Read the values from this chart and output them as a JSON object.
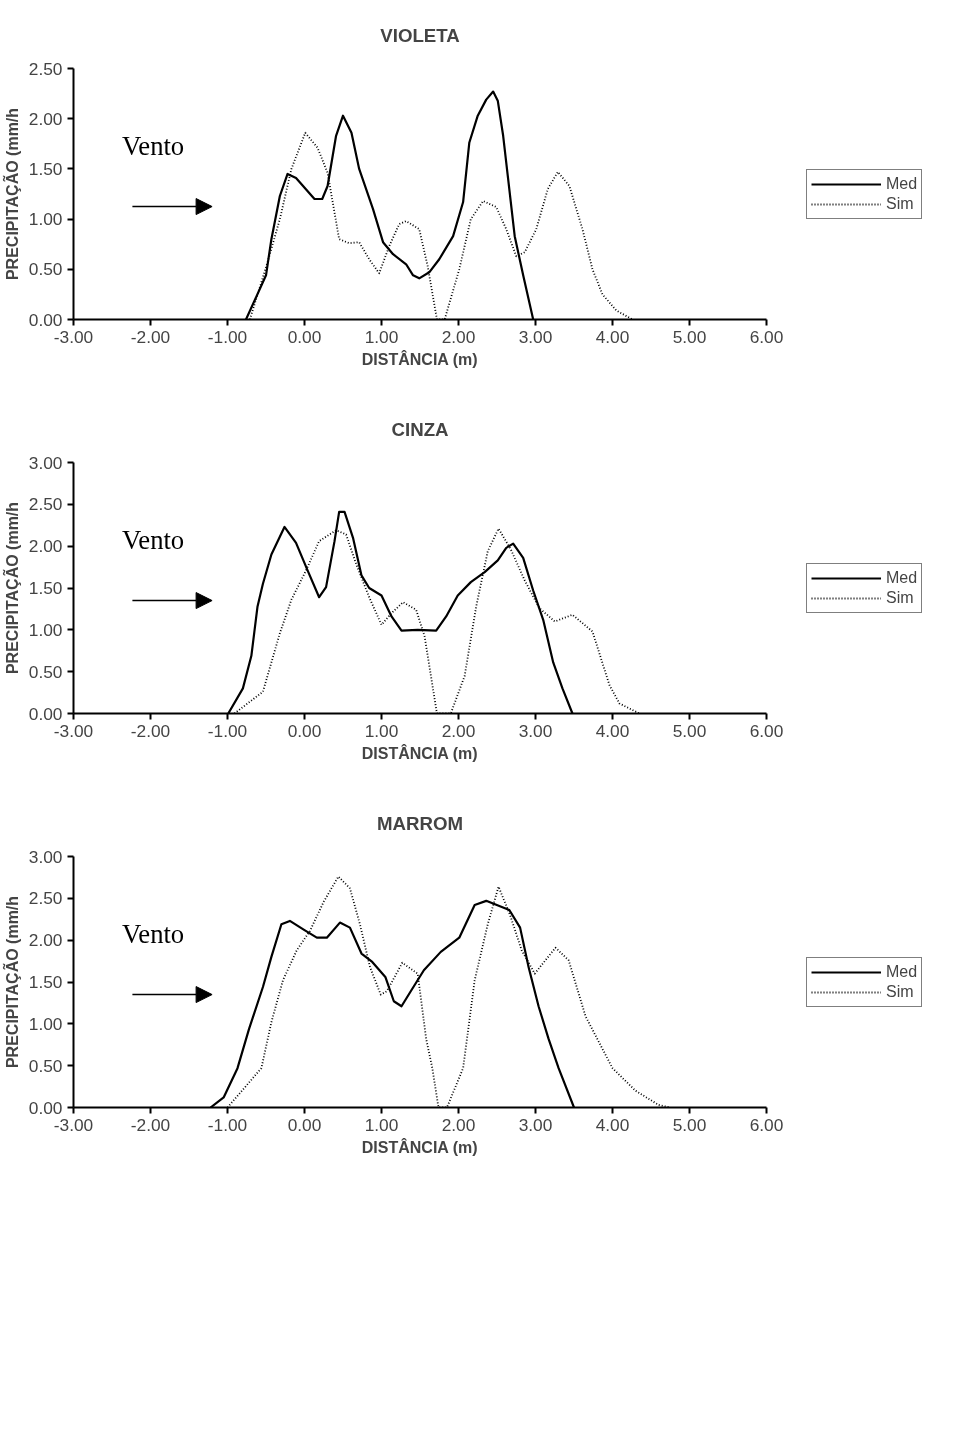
{
  "chart_data": [
    {
      "type": "line",
      "title": "VIOLETA",
      "xlabel": "DISTÂNCIA (m)",
      "ylabel": "PRECIPITAÇÃO (mm/h",
      "annotations": [
        "Vento"
      ],
      "legend": "right",
      "grid": false,
      "xlim": [
        -3,
        6
      ],
      "xticks": [
        {
          "value": -3,
          "label": "-3.00"
        },
        {
          "value": -2,
          "label": "-2.00"
        },
        {
          "value": -1,
          "label": "-1.00"
        },
        {
          "value": 0,
          "label": "0.00"
        },
        {
          "value": 1,
          "label": "1.00"
        },
        {
          "value": 2,
          "label": "2.00"
        },
        {
          "value": 3,
          "label": "3.00"
        },
        {
          "value": 4,
          "label": "4.00"
        },
        {
          "value": 5,
          "label": "5.00"
        },
        {
          "value": 6,
          "label": "6.00"
        }
      ],
      "ylim": [
        0,
        2.5
      ],
      "yticks": [
        {
          "value": 0,
          "label": "0.00"
        },
        {
          "value": 0.5,
          "label": "0.50"
        },
        {
          "value": 1,
          "label": "1.00"
        },
        {
          "value": 1.5,
          "label": "1.50"
        },
        {
          "value": 2,
          "label": "2.00"
        },
        {
          "value": 2.5,
          "label": "2.50"
        }
      ],
      "series": [
        {
          "name": "Med",
          "color": "#000000",
          "line_style": "solid",
          "x": [
            -0.76,
            -0.5,
            -0.43,
            -0.32,
            -0.22,
            -0.11,
            0.13,
            0.23,
            0.3,
            0.41,
            0.5,
            0.61,
            0.71,
            0.89,
            1.02,
            1.15,
            1.32,
            1.41,
            1.49,
            1.62,
            1.75,
            1.93,
            2.06,
            2.14,
            2.25,
            2.36,
            2.45,
            2.51,
            2.58,
            2.64,
            2.73,
            2.84,
            2.97
          ],
          "values": [
            0,
            0.44,
            0.8,
            1.23,
            1.45,
            1.41,
            1.2,
            1.2,
            1.33,
            1.83,
            2.03,
            1.86,
            1.5,
            1.1,
            0.77,
            0.65,
            0.55,
            0.44,
            0.41,
            0.47,
            0.6,
            0.83,
            1.17,
            1.76,
            2.03,
            2.19,
            2.27,
            2.18,
            1.83,
            1.43,
            0.83,
            0.44,
            0
          ]
        },
        {
          "name": "Sim",
          "color": "#000000",
          "line_style": "dotted",
          "x": [
            -0.71,
            -0.48,
            -0.32,
            -0.17,
            0.01,
            0.17,
            0.3,
            0.45,
            0.58,
            0.71,
            0.84,
            0.97,
            1.1,
            1.23,
            1.32,
            1.49,
            1.6,
            1.72,
            1.82,
            2.01,
            2.16,
            2.32,
            2.49,
            2.62,
            2.75,
            2.86,
            3.01,
            3.16,
            3.29,
            3.44,
            3.61,
            3.74,
            3.87,
            4.05,
            4.26
          ],
          "values": [
            0,
            0.57,
            1.0,
            1.5,
            1.86,
            1.71,
            1.46,
            0.8,
            0.76,
            0.77,
            0.6,
            0.46,
            0.73,
            0.95,
            0.98,
            0.9,
            0.53,
            0,
            0,
            0.5,
            1.0,
            1.18,
            1.12,
            0.9,
            0.63,
            0.67,
            0.9,
            1.3,
            1.47,
            1.33,
            0.9,
            0.5,
            0.25,
            0.09,
            0
          ]
        }
      ]
    },
    {
      "type": "line",
      "title": "CINZA",
      "xlabel": "DISTÂNCIA (m)",
      "ylabel": "PRECIPITAÇÃO (mm/h",
      "annotations": [
        "Vento"
      ],
      "legend": "right",
      "grid": false,
      "xlim": [
        -3,
        6
      ],
      "xticks": [
        {
          "value": -3,
          "label": "-3.00"
        },
        {
          "value": -2,
          "label": "-2.00"
        },
        {
          "value": -1,
          "label": "-1.00"
        },
        {
          "value": 0,
          "label": "0.00"
        },
        {
          "value": 1,
          "label": "1.00"
        },
        {
          "value": 2,
          "label": "2.00"
        },
        {
          "value": 3,
          "label": "3.00"
        },
        {
          "value": 4,
          "label": "4.00"
        },
        {
          "value": 5,
          "label": "5.00"
        },
        {
          "value": 6,
          "label": "6.00"
        }
      ],
      "ylim": [
        0,
        3
      ],
      "yticks": [
        {
          "value": 0,
          "label": "0.00"
        },
        {
          "value": 0.5,
          "label": "0.50"
        },
        {
          "value": 1,
          "label": "1.00"
        },
        {
          "value": 1.5,
          "label": "1.50"
        },
        {
          "value": 2,
          "label": "2.00"
        },
        {
          "value": 2.5,
          "label": "2.50"
        },
        {
          "value": 3,
          "label": "3.00"
        }
      ],
      "series": [
        {
          "name": "Med",
          "color": "#000000",
          "line_style": "solid",
          "x": [
            -0.99,
            -0.8,
            -0.69,
            -0.61,
            -0.54,
            -0.43,
            -0.26,
            -0.11,
            0.04,
            0.19,
            0.28,
            0.39,
            0.45,
            0.52,
            0.63,
            0.74,
            0.84,
            1.0,
            1.13,
            1.26,
            1.47,
            1.71,
            1.84,
            1.99,
            2.16,
            2.34,
            2.51,
            2.62,
            2.71,
            2.84,
            2.97,
            3.1,
            3.23,
            3.35,
            3.48
          ],
          "values": [
            0,
            0.3,
            0.69,
            1.28,
            1.55,
            1.9,
            2.23,
            2.04,
            1.71,
            1.39,
            1.51,
            2.06,
            2.41,
            2.41,
            2.1,
            1.65,
            1.5,
            1.41,
            1.16,
            0.99,
            1.0,
            0.99,
            1.16,
            1.41,
            1.57,
            1.69,
            1.83,
            1.98,
            2.03,
            1.86,
            1.47,
            1.12,
            0.61,
            0.3,
            0
          ]
        },
        {
          "name": "Sim",
          "color": "#000000",
          "line_style": "dotted",
          "x": [
            -0.91,
            -0.54,
            -0.32,
            -0.17,
            0.02,
            0.19,
            0.41,
            0.54,
            0.67,
            0.84,
            1.0,
            1.13,
            1.28,
            1.45,
            1.56,
            1.72,
            1.9,
            2.08,
            2.23,
            2.38,
            2.52,
            2.68,
            2.86,
            3.05,
            3.25,
            3.48,
            3.74,
            3.96,
            4.09,
            4.35
          ],
          "values": [
            0,
            0.26,
            0.96,
            1.36,
            1.71,
            2.06,
            2.19,
            2.14,
            1.79,
            1.39,
            1.06,
            1.2,
            1.33,
            1.24,
            0.92,
            0,
            0,
            0.45,
            1.28,
            1.94,
            2.21,
            1.96,
            1.59,
            1.26,
            1.1,
            1.18,
            0.98,
            0.34,
            0.12,
            0
          ]
        }
      ]
    },
    {
      "type": "line",
      "title": "MARROM",
      "xlabel": "DISTÂNCIA (m)",
      "ylabel": "PRECIPITAÇÃO (mm/h",
      "annotations": [
        "Vento"
      ],
      "legend": "right",
      "grid": false,
      "xlim": [
        -3,
        6
      ],
      "xticks": [
        {
          "value": -3,
          "label": "-3.00"
        },
        {
          "value": -2,
          "label": "-2.00"
        },
        {
          "value": -1,
          "label": "-1.00"
        },
        {
          "value": 0,
          "label": "0.00"
        },
        {
          "value": 1,
          "label": "1.00"
        },
        {
          "value": 2,
          "label": "2.00"
        },
        {
          "value": 3,
          "label": "3.00"
        },
        {
          "value": 4,
          "label": "4.00"
        },
        {
          "value": 5,
          "label": "5.00"
        },
        {
          "value": 6,
          "label": "6.00"
        }
      ],
      "ylim": [
        0,
        3
      ],
      "yticks": [
        {
          "value": 0,
          "label": "0.00"
        },
        {
          "value": 0.5,
          "label": "0.50"
        },
        {
          "value": 1,
          "label": "1.00"
        },
        {
          "value": 1.5,
          "label": "1.50"
        },
        {
          "value": 2,
          "label": "2.00"
        },
        {
          "value": 2.5,
          "label": "2.50"
        },
        {
          "value": 3,
          "label": "3.00"
        }
      ],
      "series": [
        {
          "name": "Med",
          "color": "#000000",
          "line_style": "solid",
          "x": [
            -1.22,
            -1.05,
            -0.87,
            -0.72,
            -0.54,
            -0.43,
            -0.3,
            -0.19,
            0.0,
            0.16,
            0.29,
            0.46,
            0.59,
            0.74,
            0.88,
            1.05,
            1.16,
            1.26,
            1.38,
            1.55,
            1.77,
            2.01,
            2.21,
            2.36,
            2.66,
            2.8,
            2.91,
            3.04,
            3.17,
            3.3,
            3.5
          ],
          "values": [
            0,
            0.12,
            0.47,
            0.94,
            1.44,
            1.8,
            2.19,
            2.23,
            2.12,
            2.03,
            2.03,
            2.21,
            2.15,
            1.84,
            1.74,
            1.56,
            1.27,
            1.21,
            1.39,
            1.64,
            1.86,
            2.03,
            2.42,
            2.47,
            2.36,
            2.15,
            1.68,
            1.21,
            0.82,
            0.47,
            0
          ]
        },
        {
          "name": "Sim",
          "color": "#000000",
          "line_style": "dotted",
          "x": [
            -1.0,
            -0.56,
            -0.43,
            -0.28,
            -0.1,
            0.07,
            0.25,
            0.44,
            0.59,
            0.72,
            0.85,
            0.99,
            1.07,
            1.27,
            1.47,
            1.58,
            1.66,
            1.74,
            1.85,
            2.06,
            2.21,
            2.38,
            2.52,
            2.67,
            2.82,
            2.99,
            3.26,
            3.43,
            3.65,
            4.0,
            4.3,
            4.6,
            4.75
          ],
          "values": [
            0,
            0.47,
            1.02,
            1.52,
            1.88,
            2.11,
            2.46,
            2.76,
            2.62,
            2.19,
            1.68,
            1.35,
            1.39,
            1.73,
            1.6,
            0.82,
            0.47,
            0,
            0,
            0.47,
            1.52,
            2.19,
            2.64,
            2.3,
            1.88,
            1.6,
            1.91,
            1.76,
            1.09,
            0.47,
            0.2,
            0.03,
            0
          ]
        }
      ]
    }
  ]
}
